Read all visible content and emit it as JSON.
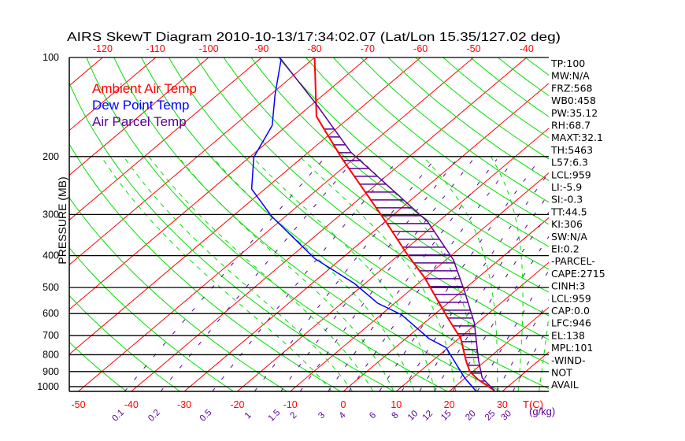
{
  "chart_data": {
    "type": "line",
    "title": "AIRS SkewT Diagram 2010-10-13/17:34:02.07 (Lat/Lon 15.35/127.02 deg)",
    "ylabel": "PRESSURE (MB)",
    "xlabel": "T(C)",
    "mixing_ratio_unit_label": "(g/kg)",
    "ylim": [
      1034,
      100
    ],
    "y_ticks": [
      100,
      200,
      300,
      400,
      500,
      600,
      700,
      800,
      900,
      1000
    ],
    "top_temp_ticks": [
      -120,
      -110,
      -100,
      -90,
      -80,
      -70,
      -60,
      -50,
      -40
    ],
    "bottom_temp_ticks": [
      -50,
      -40,
      -30,
      -20,
      -10,
      0,
      10,
      20,
      30
    ],
    "mixing_ratio_labels": [
      "0.1",
      "0.2",
      "0.5",
      "1",
      "1.5",
      "2",
      "3",
      "4",
      "6",
      "8",
      "10",
      "12",
      "15",
      "20",
      "25",
      "30"
    ],
    "legend": [
      {
        "label": "Ambient Air Temp",
        "color": "#ff0000"
      },
      {
        "label": "Dew Point Temp",
        "color": "#0000ff"
      },
      {
        "label": "Air Parcel Temp",
        "color": "#5a0096"
      }
    ],
    "series": [
      {
        "name": "Ambient Air Temp",
        "color": "#ff0000",
        "pressure": [
          100,
          151,
          201,
          316,
          396,
          468,
          616,
          715,
          830,
          901,
          952,
          1029
        ],
        "temperature": [
          -80,
          -66.5,
          -52.7,
          -29.8,
          -18.6,
          -9.9,
          3.1,
          10.4,
          16.1,
          19.5,
          22.8,
          28.4
        ]
      },
      {
        "name": "Dew Point Temp",
        "color": "#0000ff",
        "pressure": [
          101,
          130,
          161,
          201,
          251,
          304,
          408,
          486,
          558,
          605,
          715,
          761,
          941,
          1034
        ],
        "temperature": [
          -86,
          -79.1,
          -72.8,
          -69.2,
          -62.5,
          -52.6,
          -35.1,
          -22,
          -13.2,
          -6.1,
          4.4,
          9.6,
          19.9,
          25.1
        ]
      },
      {
        "name": "Air Parcel Temp",
        "color": "#5a0096",
        "pressure": [
          100,
          138,
          194,
          316,
          412,
          513,
          640,
          830,
          941,
          1029
        ],
        "temperature": [
          -86.6,
          -69.5,
          -52,
          -21.9,
          -8.6,
          0.5,
          9.4,
          18.5,
          23.2,
          28.4
        ]
      }
    ],
    "hatch_pressure_range": [
      165,
      1000
    ],
    "colors": {
      "isotherm": "#ff0000",
      "dry_adiabat": "#00e000",
      "moist_adiabat": "#00e000",
      "mixing_ratio": "#5a0096",
      "grid": "#000000"
    }
  },
  "stats": [
    "TP:100",
    "MW:N/A",
    "FRZ:568",
    "WB0:458",
    "PW:35.12",
    "RH:68.7",
    "MAXT:32.1",
    "TH:5463",
    "L57:6.3",
    "LCL:959",
    "LI:-5.9",
    "SI:-0.3",
    "TT:44.5",
    "KI:306",
    "SW:N/A",
    "EI:0.2",
    "-PARCEL-",
    "CAPE:2715",
    "CINH:3",
    "LCL:959",
    "CAP:0.0",
    "LFC:946",
    "EL:138",
    "MPL:101",
    "-WIND-",
    "NOT",
    "AVAIL"
  ]
}
